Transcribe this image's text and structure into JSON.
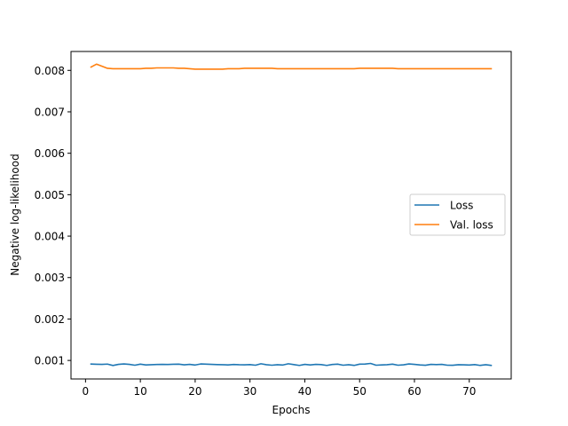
{
  "chart_data": {
    "type": "line",
    "title": "",
    "xlabel": "Epochs",
    "ylabel": "Negative log-likelihood",
    "xlim": [
      -2.65,
      77.65
    ],
    "ylim": [
      0.000553,
      0.008456
    ],
    "xticks": [
      0,
      10,
      20,
      30,
      40,
      50,
      60,
      70
    ],
    "yticks": [
      0.001,
      0.002,
      0.003,
      0.004,
      0.005,
      0.006,
      0.007,
      0.008
    ],
    "ytick_labels": [
      "0.001",
      "0.002",
      "0.003",
      "0.004",
      "0.005",
      "0.006",
      "0.007",
      "0.008"
    ],
    "grid": false,
    "legend_position": "center-right",
    "series": [
      {
        "name": "Loss",
        "color": "#1f77b4",
        "x": [
          1,
          2,
          3,
          4,
          5,
          6,
          7,
          8,
          9,
          10,
          11,
          12,
          13,
          14,
          15,
          16,
          17,
          18,
          19,
          20,
          21,
          22,
          23,
          24,
          25,
          26,
          27,
          28,
          29,
          30,
          31,
          32,
          33,
          34,
          35,
          36,
          37,
          38,
          39,
          40,
          41,
          42,
          43,
          44,
          45,
          46,
          47,
          48,
          49,
          50,
          51,
          52,
          53,
          54,
          55,
          56,
          57,
          58,
          59,
          60,
          61,
          62,
          63,
          64,
          65,
          66,
          67,
          68,
          69,
          70,
          71,
          72,
          73,
          74
        ],
        "y": [
          0.000913,
          0.000908,
          0.000905,
          0.000912,
          0.000878,
          0.000905,
          0.000915,
          0.000905,
          0.000885,
          0.00091,
          0.000892,
          0.000897,
          0.000902,
          0.000905,
          0.000903,
          0.000908,
          0.00091,
          0.000895,
          0.000905,
          0.00089,
          0.000915,
          0.00091,
          0.000905,
          0.0009,
          0.000897,
          0.000892,
          0.000902,
          0.000897,
          0.000895,
          0.0009,
          0.000885,
          0.00092,
          0.000897,
          0.000885,
          0.000897,
          0.00089,
          0.00092,
          0.0009,
          0.00088,
          0.000905,
          0.000892,
          0.000905,
          0.0009,
          0.00088,
          0.000902,
          0.00091,
          0.000885,
          0.000897,
          0.00088,
          0.00091,
          0.000913,
          0.000928,
          0.000885,
          0.000892,
          0.000897,
          0.00091,
          0.000885,
          0.000895,
          0.000915,
          0.000905,
          0.000892,
          0.000883,
          0.000905,
          0.0009,
          0.000905,
          0.000885,
          0.000883,
          0.000897,
          0.000895,
          0.00089,
          0.0009,
          0.00088,
          0.000897,
          0.00088
        ]
      },
      {
        "name": "Val. loss",
        "color": "#ff7f0e",
        "x": [
          1,
          2,
          3,
          4,
          5,
          6,
          7,
          8,
          9,
          10,
          11,
          12,
          13,
          14,
          15,
          16,
          17,
          18,
          19,
          20,
          21,
          22,
          23,
          24,
          25,
          26,
          27,
          28,
          29,
          30,
          31,
          32,
          33,
          34,
          35,
          36,
          37,
          38,
          39,
          40,
          41,
          42,
          43,
          44,
          45,
          46,
          47,
          48,
          49,
          50,
          51,
          52,
          53,
          54,
          55,
          56,
          57,
          58,
          59,
          60,
          61,
          62,
          63,
          64,
          65,
          66,
          67,
          68,
          69,
          70,
          71,
          72,
          73,
          74
        ],
        "y": [
          0.00808,
          0.00815,
          0.0081,
          0.00805,
          0.00804,
          0.00804,
          0.00804,
          0.00804,
          0.00804,
          0.00804,
          0.00805,
          0.00805,
          0.00806,
          0.00806,
          0.00806,
          0.00806,
          0.00805,
          0.00805,
          0.00804,
          0.00803,
          0.00803,
          0.00803,
          0.00803,
          0.00803,
          0.00803,
          0.00804,
          0.00804,
          0.00804,
          0.00805,
          0.00805,
          0.00805,
          0.00805,
          0.00805,
          0.00805,
          0.00804,
          0.00804,
          0.00804,
          0.00804,
          0.00804,
          0.00804,
          0.00804,
          0.00804,
          0.00804,
          0.00804,
          0.00804,
          0.00804,
          0.00804,
          0.00804,
          0.00804,
          0.00805,
          0.00805,
          0.00805,
          0.00805,
          0.00805,
          0.00805,
          0.00805,
          0.00804,
          0.00804,
          0.00804,
          0.00804,
          0.00804,
          0.00804,
          0.00804,
          0.00804,
          0.00804,
          0.00804,
          0.00804,
          0.00804,
          0.00804,
          0.00804,
          0.00804,
          0.00804,
          0.00804,
          0.00804
        ]
      }
    ]
  }
}
